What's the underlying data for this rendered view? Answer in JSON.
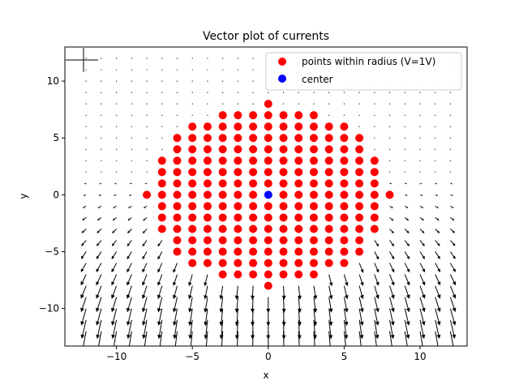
{
  "chart_data": {
    "type": "scatter",
    "title": "Vector plot of currents",
    "xlabel": "x",
    "ylabel": "y",
    "xlim": [
      -13.4,
      13.1
    ],
    "ylim": [
      -13.3,
      13.0
    ],
    "xticks": [
      -10,
      -5,
      0,
      5,
      10
    ],
    "xtick_labels": [
      "−10",
      "−5",
      "0",
      "5",
      "10"
    ],
    "yticks": [
      -10,
      -5,
      0,
      5,
      10
    ],
    "ytick_labels": [
      "−10",
      "−5",
      "0",
      "5",
      "10"
    ],
    "legend_position": "top-right",
    "series": [
      {
        "name": "points within radius (V=1V)",
        "color": "#ff0000",
        "marker": "circle",
        "description_rule": "integer lattice points (x, y) with x^2 + y^2 <= 64",
        "row_extents": [
          {
            "y": 8,
            "x_from": 0,
            "x_to": 0
          },
          {
            "y": 7,
            "x_from": -3,
            "x_to": 3
          },
          {
            "y": 6,
            "x_from": -5,
            "x_to": 5
          },
          {
            "y": 5,
            "x_from": -6,
            "x_to": 6
          },
          {
            "y": 4,
            "x_from": -6,
            "x_to": 6
          },
          {
            "y": 3,
            "x_from": -7,
            "x_to": 7
          },
          {
            "y": 2,
            "x_from": -7,
            "x_to": 7
          },
          {
            "y": 1,
            "x_from": -7,
            "x_to": 7
          },
          {
            "y": 0,
            "x_from": -8,
            "x_to": 8
          },
          {
            "y": -1,
            "x_from": -7,
            "x_to": 7
          },
          {
            "y": -2,
            "x_from": -7,
            "x_to": 7
          },
          {
            "y": -3,
            "x_from": -7,
            "x_to": 7
          },
          {
            "y": -4,
            "x_from": -6,
            "x_to": 6
          },
          {
            "y": -5,
            "x_from": -6,
            "x_to": 6
          },
          {
            "y": -6,
            "x_from": -5,
            "x_to": 5
          },
          {
            "y": -7,
            "x_from": -3,
            "x_to": 3
          },
          {
            "y": -8,
            "x_from": 0,
            "x_to": 0
          }
        ]
      },
      {
        "name": "center",
        "color": "#0000ff",
        "marker": "circle",
        "points": [
          [
            0,
            0
          ]
        ]
      }
    ],
    "quiver": {
      "grid_x_range": [
        -12,
        12
      ],
      "grid_y_range": [
        -12,
        12
      ],
      "grid_step": 1,
      "color": "#000000",
      "description": "current arrows on integer grid outside the radius; tiny in the upper region, growing larger toward the bottom and pointing downward/outward"
    }
  }
}
